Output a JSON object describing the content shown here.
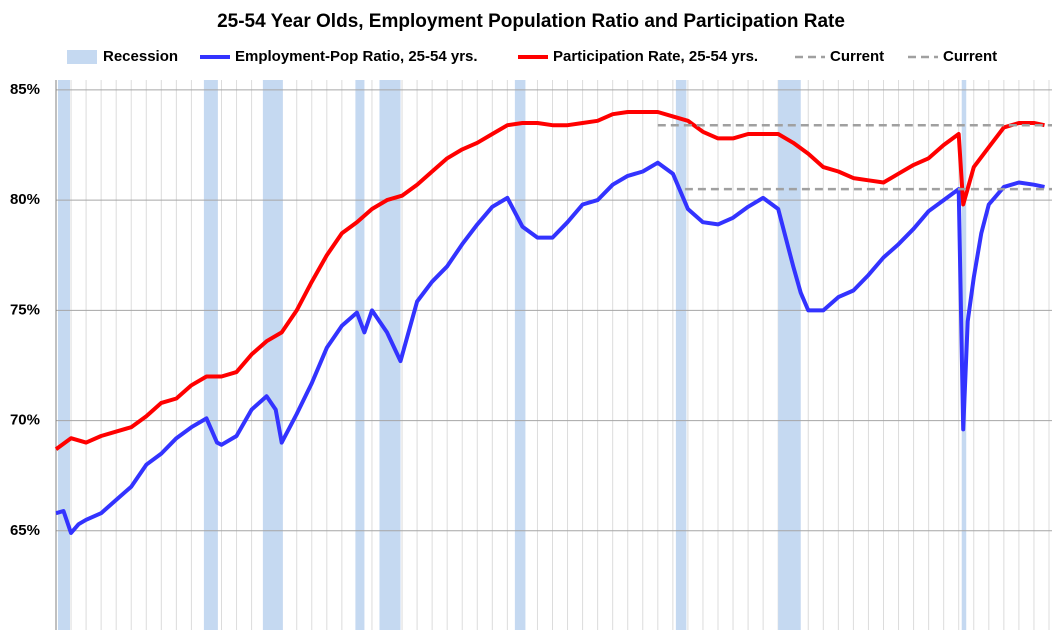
{
  "chart_data": {
    "type": "line",
    "title": "25-54 Year Olds, Employment Population Ratio and Participation Rate",
    "xlim": [
      0,
      66.2
    ],
    "ylim": [
      60.5,
      85.45
    ],
    "yticks": [
      {
        "value": 65,
        "label": "65%"
      },
      {
        "value": 70,
        "label": "70%"
      },
      {
        "value": 75,
        "label": "75%"
      },
      {
        "value": 80,
        "label": "80%"
      },
      {
        "value": 85,
        "label": "85%"
      }
    ],
    "grid": true,
    "recessions": {
      "name": "Recession",
      "color": "#c5d9f1",
      "ranges": [
        [
          0.13,
          0.93
        ],
        [
          9.83,
          10.76
        ],
        [
          13.75,
          15.08
        ],
        [
          19.9,
          20.5
        ],
        [
          21.5,
          22.9
        ],
        [
          30.5,
          31.2
        ],
        [
          41.2,
          41.9
        ],
        [
          48.0,
          49.5
        ],
        [
          60.2,
          60.5
        ]
      ]
    },
    "series": [
      {
        "name": "Employment-Pop Ratio, 25-54 yrs.",
        "color": "#3333ff",
        "x": [
          0,
          0.5,
          1,
          1.5,
          2,
          3,
          4,
          5,
          6,
          7,
          8,
          9,
          10,
          10.7,
          11,
          12,
          13,
          14,
          14.6,
          15,
          16,
          17,
          18,
          19,
          20,
          20.5,
          21,
          22,
          22.9,
          24,
          25,
          26,
          27,
          28,
          29,
          30,
          31,
          32,
          33,
          34,
          35,
          36,
          37,
          38,
          39,
          40,
          41,
          42,
          43,
          44,
          45,
          46,
          47,
          48,
          49,
          49.5,
          50,
          51,
          52,
          53,
          54,
          55,
          56,
          57,
          58,
          59,
          60,
          60.3,
          60.6,
          61,
          61.5,
          62,
          63,
          64,
          65,
          65.7
        ],
        "values": [
          65.8,
          65.9,
          64.9,
          65.3,
          65.5,
          65.8,
          66.4,
          67.0,
          68.0,
          68.5,
          69.2,
          69.7,
          70.1,
          69.0,
          68.9,
          69.3,
          70.5,
          71.1,
          70.5,
          69.0,
          70.3,
          71.7,
          73.3,
          74.3,
          74.9,
          74.0,
          75.0,
          74.0,
          72.7,
          75.4,
          76.3,
          77.0,
          78.0,
          78.9,
          79.7,
          80.1,
          78.8,
          78.3,
          78.3,
          79.0,
          79.8,
          80.0,
          80.7,
          81.1,
          81.3,
          81.7,
          81.2,
          79.6,
          79.0,
          78.9,
          79.2,
          79.7,
          80.1,
          79.6,
          77.0,
          75.8,
          75.0,
          75.0,
          75.6,
          75.9,
          76.6,
          77.4,
          78.0,
          78.7,
          79.5,
          80.0,
          80.5,
          69.6,
          74.5,
          76.5,
          78.5,
          79.8,
          80.6,
          80.8,
          80.7,
          80.6
        ]
      },
      {
        "name": "Participation Rate, 25-54 yrs.",
        "color": "#ff0000",
        "x": [
          0,
          1,
          2,
          3,
          4,
          5,
          6,
          7,
          8,
          9,
          10,
          11,
          12,
          13,
          14,
          15,
          16,
          17,
          18,
          19,
          20,
          21,
          22,
          23,
          24,
          25,
          26,
          27,
          28,
          29,
          30,
          31,
          32,
          33,
          34,
          35,
          36,
          37,
          38,
          39,
          40,
          41,
          42,
          43,
          44,
          45,
          46,
          47,
          48,
          49,
          50,
          51,
          52,
          53,
          54,
          55,
          56,
          57,
          58,
          59,
          60,
          60.3,
          61,
          62,
          63,
          64,
          65,
          65.7
        ],
        "values": [
          68.7,
          69.2,
          69.0,
          69.3,
          69.5,
          69.7,
          70.2,
          70.8,
          71.0,
          71.6,
          72.0,
          72.0,
          72.2,
          73.0,
          73.6,
          74.0,
          75.0,
          76.3,
          77.5,
          78.5,
          79.0,
          79.6,
          80.0,
          80.2,
          80.7,
          81.3,
          81.9,
          82.3,
          82.6,
          83.0,
          83.4,
          83.5,
          83.5,
          83.4,
          83.4,
          83.5,
          83.6,
          83.9,
          84.0,
          84.0,
          84.0,
          83.8,
          83.6,
          83.1,
          82.8,
          82.8,
          83.0,
          83.0,
          83.0,
          82.6,
          82.1,
          81.5,
          81.3,
          81.0,
          80.9,
          80.8,
          81.2,
          81.6,
          81.9,
          82.5,
          83.0,
          79.8,
          81.5,
          82.4,
          83.3,
          83.5,
          83.5,
          83.4
        ]
      },
      {
        "name": "Current",
        "color": "#a0a0a0",
        "dash": true,
        "x": [
          40,
          66.2
        ],
        "values": [
          83.4,
          83.4
        ]
      },
      {
        "name": "Current",
        "color": "#a0a0a0",
        "dash": true,
        "x": [
          41.8,
          66.2
        ],
        "values": [
          80.5,
          80.5
        ]
      }
    ]
  }
}
